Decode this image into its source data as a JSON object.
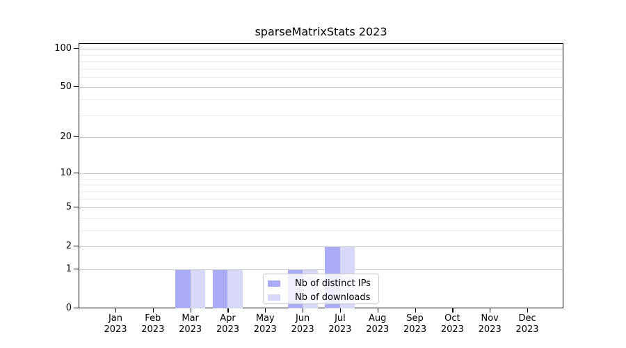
{
  "chart_data": {
    "type": "bar",
    "title": "sparseMatrixStats 2023",
    "year_label": "2023",
    "months": [
      "Jan",
      "Feb",
      "Mar",
      "Apr",
      "May",
      "Jun",
      "Jul",
      "Aug",
      "Sep",
      "Oct",
      "Nov",
      "Dec"
    ],
    "series": [
      {
        "name": "Nb of distinct IPs",
        "color": "#aaabf6",
        "values": [
          0,
          0,
          1,
          1,
          0,
          1,
          2,
          0,
          0,
          0,
          0,
          0
        ]
      },
      {
        "name": "Nb of downloads",
        "color": "#d8d9f9",
        "values": [
          0,
          0,
          1,
          1,
          0,
          1,
          2,
          0,
          0,
          0,
          0,
          0
        ]
      }
    ],
    "yscale": "log1p",
    "yticks": [
      0,
      1,
      2,
      5,
      10,
      20,
      50,
      100
    ],
    "minor_gridlines": [
      3,
      4,
      6,
      7,
      8,
      9,
      30,
      40,
      60,
      70,
      80,
      90
    ],
    "ylim": [
      0,
      111
    ],
    "grid": true,
    "legend_position": "lower-center-inside",
    "background_color": "#ffffff",
    "axis_color": "#000000"
  }
}
